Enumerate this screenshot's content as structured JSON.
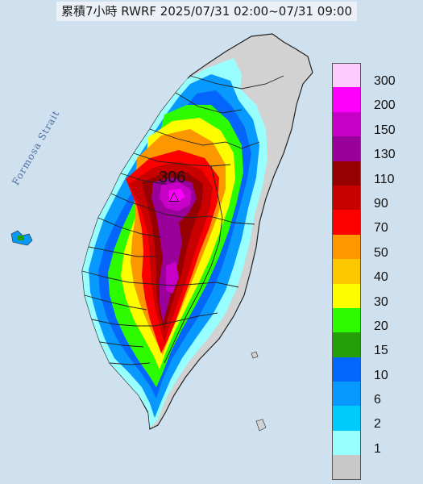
{
  "title": "累積7小時 RWRF 2025/07/31 02:00~07/31 09:00",
  "max_marker": {
    "value": "306",
    "symbol": "△"
  },
  "water_label": "Formosa Strait",
  "legend": {
    "levels": [
      {
        "label": "300",
        "color": "#fecbfe"
      },
      {
        "label": "200",
        "color": "#fc00fc"
      },
      {
        "label": "150",
        "color": "#c600c6"
      },
      {
        "label": "130",
        "color": "#9a009a"
      },
      {
        "label": "110",
        "color": "#960000"
      },
      {
        "label": "90",
        "color": "#c90000"
      },
      {
        "label": "70",
        "color": "#fc0000"
      },
      {
        "label": "50",
        "color": "#fc9700"
      },
      {
        "label": "40",
        "color": "#fdc700"
      },
      {
        "label": "30",
        "color": "#fefd00"
      },
      {
        "label": "20",
        "color": "#2dfc00"
      },
      {
        "label": "15",
        "color": "#259f07"
      },
      {
        "label": "10",
        "color": "#0566fd"
      },
      {
        "label": "6",
        "color": "#0799fd"
      },
      {
        "label": "2",
        "color": "#00cbfd"
      },
      {
        "label": "1",
        "color": "#98fefe"
      },
      {
        "label": "",
        "color": "#c8c8c8"
      }
    ]
  },
  "colors": {
    "sea": "#cfe0ee",
    "land_dry": "#d2d2d2",
    "boundary": "#222222"
  }
}
